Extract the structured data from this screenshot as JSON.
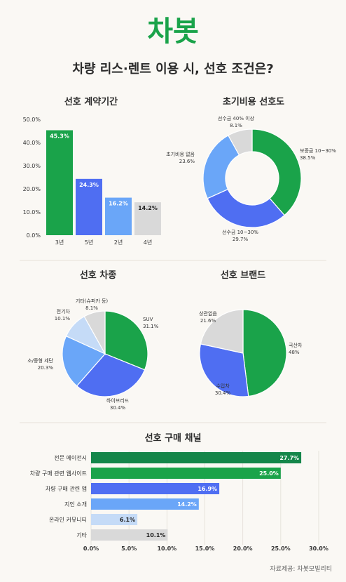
{
  "logo_text": "차봇",
  "headline": "차량 리스·렌트 이용 시, 선호 조건은?",
  "source": "자료제공: 차봇모빌리티",
  "colors": {
    "green": "#1aa34a",
    "blue": "#4f6ef2",
    "lightblue": "#6aa6f8",
    "paleblue": "#c5dbf7",
    "gray": "#d9d9d9",
    "darkgreen": "#14864a"
  },
  "chart_data": [
    {
      "type": "bar",
      "title": "선호 계약기간",
      "categories": [
        "3년",
        "5년",
        "2년",
        "4년"
      ],
      "values": [
        45.3,
        24.3,
        16.2,
        14.2
      ],
      "value_labels": [
        "45.3%",
        "24.3%",
        "16.2%",
        "14.2%"
      ],
      "bar_colors": [
        "#1aa34a",
        "#4f6ef2",
        "#6aa6f8",
        "#d9d9d9"
      ],
      "ylim": [
        0,
        50
      ],
      "yticks": [
        "0.0%",
        "10.0%",
        "20.0%",
        "30.0%",
        "40.0%",
        "50.0%"
      ],
      "grid": false
    },
    {
      "type": "pie",
      "donut": true,
      "title": "초기비용 선호도",
      "slices": [
        {
          "label": "보증금 10~30%",
          "value": 38.5,
          "value_label": "38.5%",
          "color": "#1aa34a"
        },
        {
          "label": "선수금 10~30%",
          "value": 29.7,
          "value_label": "29.7%",
          "color": "#4f6ef2"
        },
        {
          "label": "초기비용 없음",
          "value": 23.6,
          "value_label": "23.6%",
          "color": "#6aa6f8"
        },
        {
          "label": "선수금 40% 이상",
          "value": 8.1,
          "value_label": "8.1%",
          "color": "#d9d9d9"
        }
      ]
    },
    {
      "type": "pie",
      "title": "선호 차종",
      "slices": [
        {
          "label": "SUV",
          "value": 31.1,
          "value_label": "31.1%",
          "color": "#1aa34a"
        },
        {
          "label": "하이브리드",
          "value": 30.4,
          "value_label": "30.4%",
          "color": "#4f6ef2"
        },
        {
          "label": "소/중형 세단",
          "value": 20.3,
          "value_label": "20.3%",
          "color": "#6aa6f8"
        },
        {
          "label": "전기차",
          "value": 10.1,
          "value_label": "10.1%",
          "color": "#c5dbf7"
        },
        {
          "label": "기타(슈퍼카 등)",
          "value": 8.1,
          "value_label": "8.1%",
          "color": "#d9d9d9"
        }
      ]
    },
    {
      "type": "pie",
      "title": "선호 브랜드",
      "slices": [
        {
          "label": "국산차",
          "value": 48,
          "value_label": "48%",
          "color": "#1aa34a"
        },
        {
          "label": "수입차",
          "value": 30.4,
          "value_label": "30.4%",
          "color": "#4f6ef2"
        },
        {
          "label": "상관없음",
          "value": 21.6,
          "value_label": "21.6%",
          "color": "#d9d9d9"
        }
      ]
    },
    {
      "type": "bar",
      "orientation": "horizontal",
      "title": "선호 구매 채널",
      "categories": [
        "전문 에이전시",
        "차량 구매 관련 웹사이트",
        "차량 구매 관련 앱",
        "지인 소개",
        "온라인 커뮤니티",
        "기타"
      ],
      "values": [
        27.7,
        25.0,
        16.9,
        14.2,
        6.1,
        10.1
      ],
      "value_labels": [
        "27.7%",
        "25.0%",
        "16.9%",
        "14.2%",
        "6.1%",
        "10.1%"
      ],
      "bar_colors": [
        "#14864a",
        "#1aa34a",
        "#4f6ef2",
        "#6aa6f8",
        "#c5dbf7",
        "#d9d9d9"
      ],
      "xlim": [
        0,
        30
      ],
      "xticks": [
        "0.0%",
        "5.0%",
        "10.0%",
        "15.0%",
        "20.0%",
        "25.0%",
        "30.0%"
      ],
      "grid": true
    }
  ]
}
